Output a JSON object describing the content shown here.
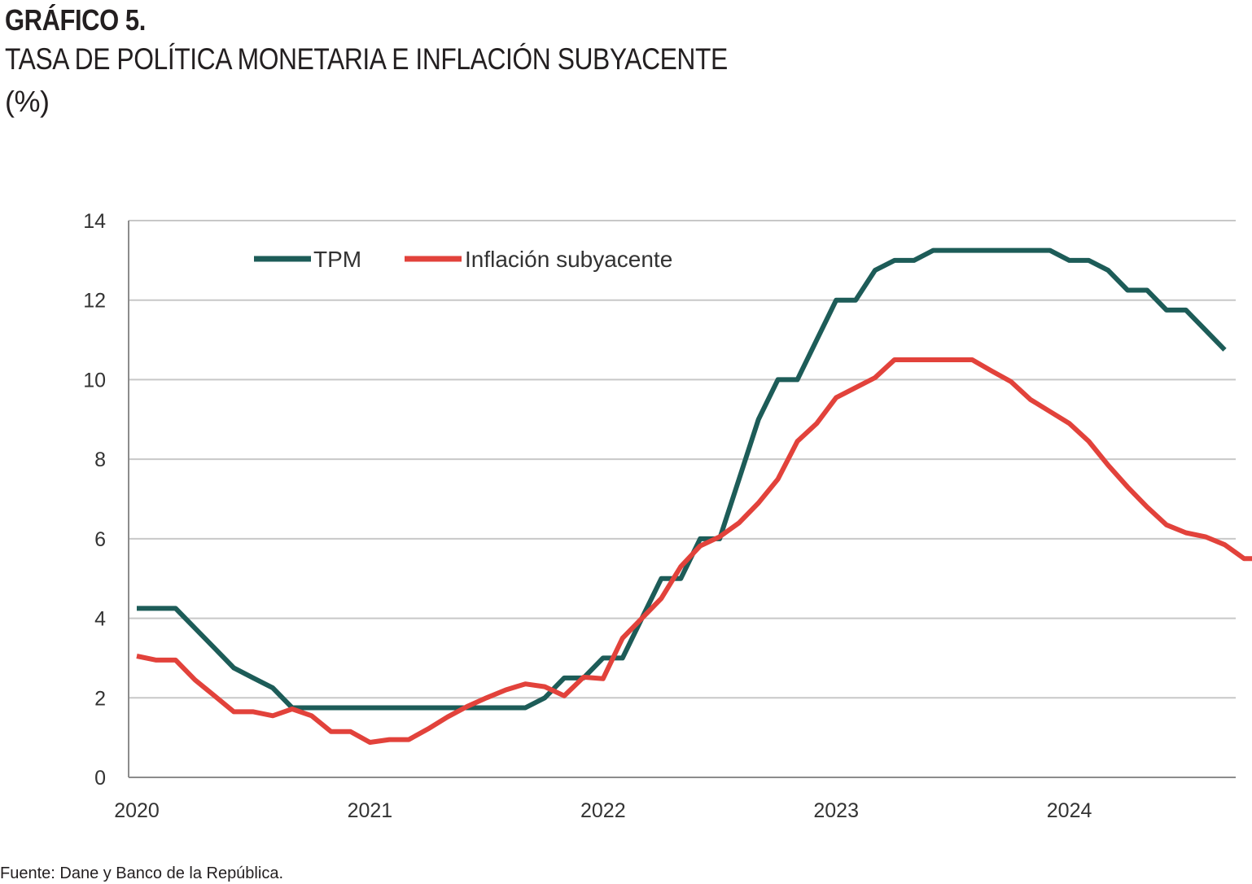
{
  "header": {
    "label": "GRÁFICO 5.",
    "title": "TASA DE POLÍTICA MONETARIA E INFLACIÓN SUBYACENTE",
    "unit": "(%)"
  },
  "source": "Fuente: Dane y Banco de la República.",
  "colors": {
    "tpm": "#1d5c58",
    "core": "#e2423b",
    "grid": "#c8c8c8",
    "axis": "#8c8c8c"
  },
  "chart_data": {
    "type": "line",
    "title": "TASA DE POLÍTICA MONETARIA E INFLACIÓN SUBYACENTE",
    "ylabel": "(%)",
    "xlabel": "",
    "ylim": [
      0,
      14
    ],
    "yticks": [
      "0",
      "2",
      "4",
      "6",
      "8",
      "10",
      "12",
      "14"
    ],
    "xticks": [
      "2020",
      "2021",
      "2022",
      "2023",
      "2024"
    ],
    "grid": true,
    "legend_position": "top-left",
    "x_start": "2020-01",
    "series": [
      {
        "name": "TPM",
        "color": "#1d5c58",
        "values": [
          4.25,
          4.25,
          4.25,
          3.75,
          3.25,
          2.75,
          2.5,
          2.25,
          1.75,
          1.75,
          1.75,
          1.75,
          1.75,
          1.75,
          1.75,
          1.75,
          1.75,
          1.75,
          1.75,
          1.75,
          1.75,
          2.0,
          2.5,
          2.5,
          3.0,
          3.0,
          4.0,
          5.0,
          5.0,
          6.0,
          6.0,
          7.5,
          9.0,
          10.0,
          10.0,
          11.0,
          12.0,
          12.0,
          12.75,
          13.0,
          13.0,
          13.25,
          13.25,
          13.25,
          13.25,
          13.25,
          13.25,
          13.25,
          13.0,
          13.0,
          12.75,
          12.25,
          12.25,
          11.75,
          11.75,
          11.25,
          10.75
        ]
      },
      {
        "name": "Inflación subyacente",
        "color": "#e2423b",
        "values": [
          3.05,
          2.95,
          2.95,
          2.45,
          2.05,
          1.65,
          1.65,
          1.55,
          1.72,
          1.55,
          1.15,
          1.15,
          0.88,
          0.95,
          0.95,
          1.22,
          1.52,
          1.78,
          2.0,
          2.2,
          2.35,
          2.28,
          2.05,
          2.52,
          2.48,
          3.5,
          4.0,
          4.5,
          5.3,
          5.82,
          6.05,
          6.4,
          6.9,
          7.5,
          8.45,
          8.9,
          9.55,
          9.8,
          10.05,
          10.5,
          10.5,
          10.5,
          10.5,
          10.5,
          10.22,
          9.95,
          9.5,
          9.2,
          8.9,
          8.45,
          7.85,
          7.3,
          6.8,
          6.35,
          6.15,
          6.05,
          5.85,
          5.5,
          5.5
        ]
      }
    ]
  }
}
